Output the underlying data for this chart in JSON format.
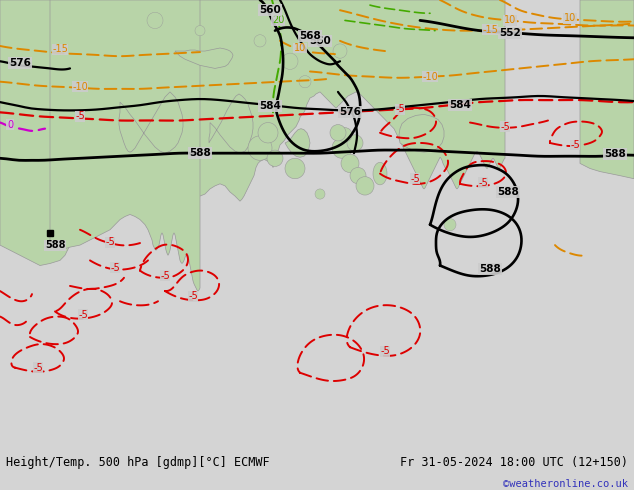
{
  "title_left": "Height/Temp. 500 hPa [gdmp][°C] ECMWF",
  "title_right": "Fr 31-05-2024 18:00 UTC (12+150)",
  "watermark": "©weatheronline.co.uk",
  "bg_color": "#d4d4d4",
  "land_color_main": "#b8d4a8",
  "land_color_dark": "#98b888",
  "sea_color": "#cccccc",
  "bottom_bar_color": "#e0e0e0",
  "title_fontsize": 8.5,
  "watermark_color": "#3333bb",
  "fig_width": 6.34,
  "fig_height": 4.9,
  "contour_lw": 1.6,
  "temp_lw": 1.4
}
